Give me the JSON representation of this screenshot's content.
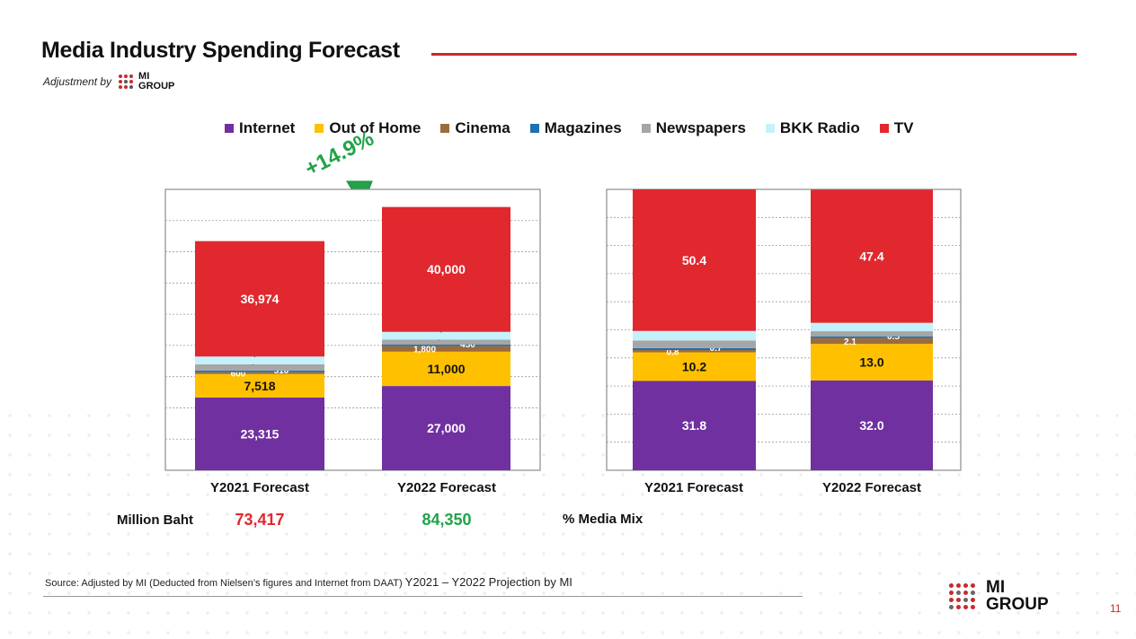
{
  "title": "Media Industry Spending Forecast",
  "adjustment_label": "Adjustment by",
  "logo": {
    "line1": "MI",
    "line2": "GROUP"
  },
  "growth_label": "+14.9%",
  "colors": {
    "Internet": "#7030a0",
    "Out of Home": "#ffc000",
    "Cinema": "#9c6b3c",
    "Magazines": "#1f6fb2",
    "Newspapers": "#a6a6a6",
    "BKK Radio": "#c5f1fb",
    "TV": "#e0282e",
    "accent_red": "#c8292e",
    "accent_green": "#22a24a"
  },
  "chart_data": [
    {
      "type": "bar",
      "stacked": true,
      "categories": [
        "Y2021 Forecast",
        "Y2022 Forecast"
      ],
      "series": [
        {
          "name": "Internet",
          "values": [
            23315,
            27000
          ]
        },
        {
          "name": "Out of Home",
          "values": [
            7518,
            11000
          ]
        },
        {
          "name": "Cinema",
          "values": [
            600,
            1800
          ]
        },
        {
          "name": "Magazines",
          "values": [
            510,
            450
          ]
        },
        {
          "name": "Newspapers",
          "values": [
            2000,
            1600
          ]
        },
        {
          "name": "BKK Radio",
          "values": [
            2500,
            2500
          ]
        },
        {
          "name": "TV",
          "values": [
            36974,
            40000
          ]
        }
      ],
      "data_labels": [
        [
          "23,315",
          "27,000"
        ],
        [
          "7,518",
          "11,000"
        ],
        [
          "600",
          "1,800"
        ],
        [
          "510",
          "450"
        ],
        [
          "2,000",
          "1,600"
        ],
        [
          "2,500",
          "2,500"
        ],
        [
          "36,974",
          "40,000"
        ]
      ],
      "ylim": [
        0,
        90000
      ],
      "grid": true,
      "legend": "top",
      "totals_label": "Million Baht",
      "totals": [
        "73,417",
        "84,350"
      ]
    },
    {
      "type": "bar",
      "stacked": true,
      "categories": [
        "Y2021 Forecast",
        "Y2022 Forecast"
      ],
      "series": [
        {
          "name": "Internet",
          "values": [
            31.8,
            32.0
          ]
        },
        {
          "name": "Out of Home",
          "values": [
            10.2,
            13.0
          ]
        },
        {
          "name": "Cinema",
          "values": [
            0.8,
            2.1
          ]
        },
        {
          "name": "Magazines",
          "values": [
            0.7,
            0.5
          ]
        },
        {
          "name": "Newspapers",
          "values": [
            2.7,
            1.9
          ]
        },
        {
          "name": "BKK Radio",
          "values": [
            3.4,
            3.0
          ]
        },
        {
          "name": "TV",
          "values": [
            50.4,
            47.4
          ]
        }
      ],
      "data_labels": [
        [
          "31.8",
          "32.0"
        ],
        [
          "10.2",
          "13.0"
        ],
        [
          "0.8",
          "2.1"
        ],
        [
          "0.7",
          "0.5"
        ],
        [
          "2.7",
          "1.9"
        ],
        [
          "3.4",
          "3.0"
        ],
        [
          "50.4",
          "47.4"
        ]
      ],
      "ylim": [
        0,
        100
      ],
      "grid": true,
      "caption": "% Media Mix"
    }
  ],
  "source_prefix": "Source: Adjusted by MI (Deducted  from Nielsen’s figures and Internet from DAAT)",
  "source_suffix": "Y2021 – Y2022 Projection by MI",
  "page_number": "11"
}
